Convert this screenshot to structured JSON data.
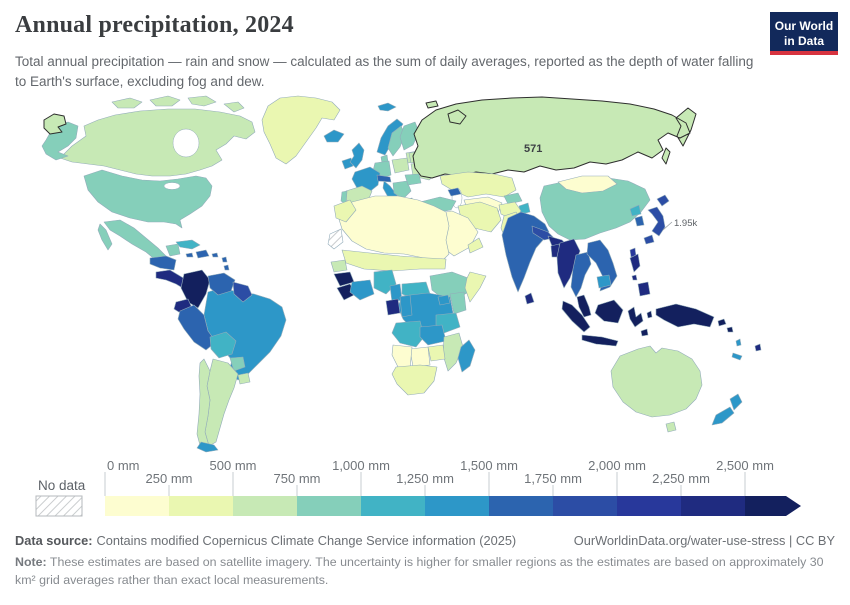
{
  "header": {
    "title": "Annual precipitation, 2024",
    "subtitle": "Total annual precipitation — rain and snow — calculated as the sum of daily averages, reported as the depth of water falling to Earth's surface, excluding fog and dew.",
    "logo": {
      "line1": "Our World",
      "line2": "in Data",
      "bg_color": "#12295b",
      "strip_color": "#d7333f"
    }
  },
  "map": {
    "annotations": [
      {
        "label": "571",
        "country": "Russia"
      },
      {
        "label": "1.95k",
        "country": "Japan"
      }
    ]
  },
  "legend": {
    "no_data_label": "No data",
    "unit": "mm",
    "ticks_top": [
      "0 mm",
      "500 mm",
      "1,000 mm",
      "1,500 mm",
      "2,000 mm",
      "2,500 mm"
    ],
    "ticks_bottom": [
      "250 mm",
      "750 mm",
      "1,250 mm",
      "1,750 mm",
      "2,250 mm"
    ],
    "bin_colors": [
      "#fdfdd0",
      "#eaf7b1",
      "#c7e9b5",
      "#85cfba",
      "#41b3c5",
      "#2d97c8",
      "#2c64af",
      "#2c4da5",
      "#28389b",
      "#1f2b80",
      "#13205e"
    ]
  },
  "footer": {
    "source_label": "Data source:",
    "source_text": "Contains modified Copernicus Climate Change Service information (2025)",
    "link_text": "OurWorldinData.org/water-use-stress | CC BY",
    "note_label": "Note:",
    "note_text": "These estimates are based on satellite imagery. The uncertainty is higher for smaller regions as the estimates are based on approximately 30 km² grid averages rather than exact local measurements."
  },
  "chart_data": {
    "type": "choropleth",
    "title": "Annual precipitation, 2024",
    "unit": "mm",
    "bin_edges_mm": [
      0,
      250,
      500,
      750,
      1000,
      1250,
      1500,
      1750,
      2000,
      2250,
      2500
    ],
    "top_bin_open_ended": true,
    "legend_position": "bottom",
    "labeled_values": [
      {
        "region": "Russia",
        "display": "571",
        "value_mm": 571
      },
      {
        "region": "Japan",
        "display": "1.95k",
        "value_mm": 1950
      }
    ],
    "regions_bin_index": {
      "chukotka": 2,
      "alaska": 3,
      "canada": 2,
      "arctic_islands": 2,
      "greenland": 1,
      "usa": 3,
      "mexico": 3,
      "baja": 3,
      "guatemala_honduras": 6,
      "nicaragua_panama": 9,
      "cuba": 4,
      "jamaica": 6,
      "hispaniola": 6,
      "lesser_antilles": 6,
      "colombia": 10,
      "venezuela": 6,
      "guyanas": 7,
      "ecuador": 9,
      "peru": 6,
      "brazil": 5,
      "bolivia": 4,
      "paraguay": 3,
      "uruguay": 2,
      "argentina": 2,
      "chile": 2,
      "chile_south": 5,
      "iceland": 5,
      "svalbard": 5,
      "franz_josef": 2,
      "ireland": 5,
      "uk": 5,
      "norway": 5,
      "sweden": 3,
      "finland": 3,
      "baltics": 2,
      "denmark": 3,
      "germany": 3,
      "poland": 2,
      "belarus": 2,
      "ukraine": 2,
      "france": 5,
      "spain": 2,
      "portugal": 3,
      "italy": 5,
      "alps": 6,
      "balkans": 3,
      "greece": 5,
      "romania": 3,
      "russia": 2,
      "kazakhstan": 1,
      "central_asia": 0,
      "kyrgyz_tajik": 3,
      "kashmir": 4,
      "caucasus": 6,
      "turkey": 3,
      "iran": 1,
      "afghanistan": 1,
      "pakistan": 1,
      "middle_east": 0,
      "oman_yemen": 1,
      "morocco": 1,
      "north_africa": 0,
      "sahel": 1,
      "senegal": 2,
      "guinea": 10,
      "sierra_liberia": 10,
      "ivory_ghana": 5,
      "nigeria": 4,
      "cameroon": 5,
      "central_african_rep": 4,
      "ethiopia": 3,
      "horn_somalia": 1,
      "drc": 5,
      "gabon": 9,
      "congo": 5,
      "uganda": 5,
      "kenya": 3,
      "tanzania": 4,
      "angola": 4,
      "zambia": 5,
      "mozambique": 2,
      "zimbabwe": 1,
      "botswana": 0,
      "namibia": 0,
      "south_africa": 1,
      "madagascar": 5,
      "india": 6,
      "nepal": 7,
      "ne_india": 9,
      "bangladesh": 9,
      "sri_lanka": 9,
      "china": 3,
      "mongolia": 0,
      "north_korea": 4,
      "south_korea": 6,
      "japan": 7,
      "taiwan": 8,
      "myanmar": 9,
      "thailand": 6,
      "laos_vietnam": 6,
      "cambodia": 5,
      "malay_peninsula": 10,
      "sumatra": 10,
      "java": 10,
      "borneo": 10,
      "sulawesi": 10,
      "moluccas": 10,
      "philippines": 9,
      "new_guinea": 10,
      "solomon": 10,
      "vanuatu": 5,
      "new_caledonia": 5,
      "fiji": 9,
      "australia": 2,
      "tasmania": 2,
      "nz_north": 5,
      "nz_south": 5
    },
    "no_data_regions": [
      "western_sahara"
    ]
  }
}
